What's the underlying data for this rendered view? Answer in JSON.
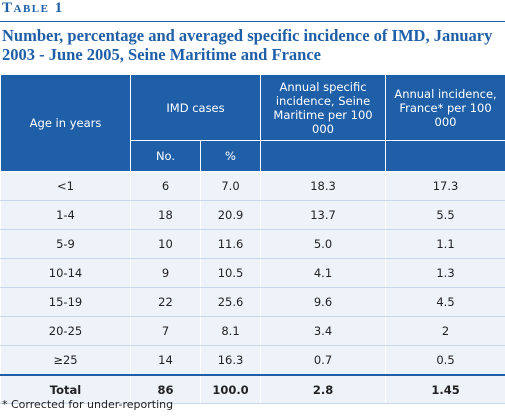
{
  "header": {
    "label": "Table 1",
    "title": "Number, percentage and averaged specific incidence of IMD, January 2003 - June 2005, Seine Maritime and France"
  },
  "table": {
    "columns": [
      "Age in years",
      "IMD cases",
      "Annual specific incidence, Seine Maritime per 100 000",
      "Annual incidence, France* per 100 000"
    ],
    "subcolumns": [
      "No.",
      "%"
    ],
    "rows": [
      [
        "<1",
        "6",
        "7.0",
        "18.3",
        "17.3"
      ],
      [
        "1-4",
        "18",
        "20.9",
        "13.7",
        "5.5"
      ],
      [
        "5-9",
        "10",
        "11.6",
        "5.0",
        "1.1"
      ],
      [
        "10-14",
        "9",
        "10.5",
        "4.1",
        "1.3"
      ],
      [
        "15-19",
        "22",
        "25.6",
        "9.6",
        "4.5"
      ],
      [
        "20-25",
        "7",
        "8.1",
        "3.4",
        "2"
      ],
      [
        "≥25",
        "14",
        "16.3",
        "0.7",
        "0.5"
      ]
    ],
    "total": [
      "Total",
      "86",
      "100.0",
      "2.8",
      "1.45"
    ]
  },
  "footnote": "* Corrected for under-reporting"
}
